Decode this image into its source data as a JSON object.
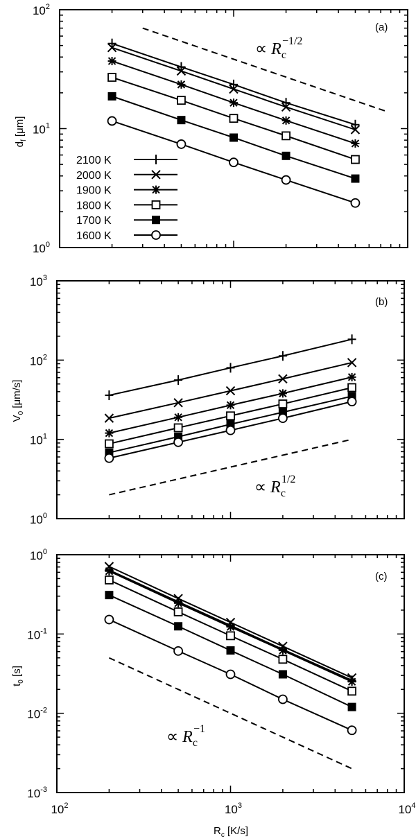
{
  "chart_data": [
    {
      "panel": "(a)",
      "type": "line",
      "scale": {
        "x": "log",
        "y": "log"
      },
      "title": "",
      "xlabel": "",
      "ylabel": "d_f [μm]",
      "xlim": [
        100,
        10000
      ],
      "ylim": [
        1,
        100
      ],
      "x_ticks": [
        "10^2",
        "10^3",
        "10^4"
      ],
      "y_ticks": [
        "10^0",
        "10^1",
        "10^2"
      ],
      "grid": false,
      "legend_position": "lower-left",
      "x": [
        200,
        500,
        1000,
        2000,
        5000
      ],
      "series": [
        {
          "name": "2100 K",
          "marker": "plus",
          "values": [
            52,
            33,
            23.5,
            16.5,
            10.8
          ]
        },
        {
          "name": "2000 K",
          "marker": "cross",
          "values": [
            48,
            30.5,
            21.5,
            15.2,
            9.8
          ]
        },
        {
          "name": "1900 K",
          "marker": "asterisk",
          "values": [
            37,
            23.5,
            16.5,
            11.7,
            7.5
          ]
        },
        {
          "name": "1800 K",
          "marker": "open-square",
          "values": [
            27,
            17.3,
            12.2,
            8.7,
            5.5
          ]
        },
        {
          "name": "1700 K",
          "marker": "filled-square",
          "values": [
            18.7,
            11.8,
            8.4,
            5.9,
            3.8
          ]
        },
        {
          "name": "1600 K",
          "marker": "open-circle",
          "values": [
            11.6,
            7.4,
            5.2,
            3.7,
            2.37
          ]
        }
      ],
      "guide_line": {
        "style": "dashed",
        "x": [
          300,
          7500
        ],
        "y": [
          70,
          14
        ],
        "label": "∝ R_c^{-1/2}"
      },
      "annotations": [
        "(a)",
        "∝ R_c^{-1/2}"
      ]
    },
    {
      "panel": "(b)",
      "type": "line",
      "scale": {
        "x": "log",
        "y": "log"
      },
      "title": "",
      "xlabel": "",
      "ylabel": "V_0 [μm/s]",
      "xlim": [
        100,
        10000
      ],
      "ylim": [
        1,
        1000
      ],
      "x_ticks": [
        "10^2",
        "10^3",
        "10^4"
      ],
      "y_ticks": [
        "10^0",
        "10^1",
        "10^2",
        "10^3"
      ],
      "grid": false,
      "x": [
        200,
        500,
        1000,
        2000,
        5000
      ],
      "series": [
        {
          "name": "2100 K",
          "marker": "plus",
          "values": [
            36,
            56,
            80,
            113,
            183
          ]
        },
        {
          "name": "2000 K",
          "marker": "cross",
          "values": [
            18.5,
            29,
            41,
            58,
            93
          ]
        },
        {
          "name": "1900 K",
          "marker": "asterisk",
          "values": [
            12,
            19,
            27,
            38,
            61
          ]
        },
        {
          "name": "1800 K",
          "marker": "open-square",
          "values": [
            8.8,
            14,
            19.8,
            28,
            45
          ]
        },
        {
          "name": "1700 K",
          "marker": "filled-square",
          "values": [
            6.8,
            10.8,
            15.5,
            22,
            35
          ]
        },
        {
          "name": "1600 K",
          "marker": "open-circle",
          "values": [
            5.8,
            9.2,
            13,
            18.5,
            30
          ]
        }
      ],
      "guide_line": {
        "style": "dashed",
        "x": [
          200,
          5000
        ],
        "y": [
          2,
          10
        ],
        "label": "∝ R_c^{1/2}"
      },
      "annotations": [
        "(b)",
        "∝ R_c^{1/2}"
      ]
    },
    {
      "panel": "(c)",
      "type": "line",
      "scale": {
        "x": "log",
        "y": "log"
      },
      "title": "",
      "xlabel": "R_c [K/s]",
      "ylabel": "t_0 [s]",
      "xlim": [
        100,
        10000
      ],
      "ylim": [
        0.001,
        1
      ],
      "x_ticks": [
        "10^2",
        "10^3",
        "10^4"
      ],
      "y_ticks": [
        "10^-3",
        "10^-2",
        "10^-1",
        "10^0"
      ],
      "grid": false,
      "x": [
        200,
        500,
        1000,
        2000,
        5000
      ],
      "series": [
        {
          "name": "2100 K",
          "marker": "plus",
          "values": [
            0.64,
            0.255,
            0.128,
            0.064,
            0.026
          ]
        },
        {
          "name": "2000 K",
          "marker": "cross",
          "values": [
            0.71,
            0.28,
            0.14,
            0.07,
            0.028
          ]
        },
        {
          "name": "1900 K",
          "marker": "asterisk",
          "values": [
            0.62,
            0.245,
            0.123,
            0.062,
            0.025
          ]
        },
        {
          "name": "1800 K",
          "marker": "open-square",
          "values": [
            0.48,
            0.19,
            0.095,
            0.048,
            0.019
          ]
        },
        {
          "name": "1700 K",
          "marker": "filled-square",
          "values": [
            0.31,
            0.125,
            0.062,
            0.031,
            0.012
          ]
        },
        {
          "name": "1600 K",
          "marker": "open-circle",
          "values": [
            0.152,
            0.061,
            0.031,
            0.015,
            0.0061
          ]
        }
      ],
      "guide_line": {
        "style": "dashed",
        "x": [
          200,
          5000
        ],
        "y": [
          0.05,
          0.002
        ],
        "label": "∝ R_c^{-1}"
      },
      "annotations": [
        "(c)",
        "∝ R_c^{-1}"
      ]
    }
  ],
  "labels": {
    "panel_a": "(a)",
    "panel_b": "(b)",
    "panel_c": "(c)",
    "ylabel_a_main": "d",
    "ylabel_a_sub": "f",
    "ylabel_a_unit": " [μm]",
    "ylabel_b_main": "V",
    "ylabel_b_sub": "0",
    "ylabel_b_unit": " [μm/s]",
    "ylabel_c_main": "t",
    "ylabel_c_sub": "0",
    "ylabel_c_unit": " [s]",
    "xlabel_main": "R",
    "xlabel_sub": "c",
    "xlabel_unit": " [K/s]",
    "annot_prop": "∝",
    "annot_R": "R",
    "annot_c": "c",
    "annot_a_exp": "−1/2",
    "annot_b_exp": "1/2",
    "annot_c_exp": "−1"
  },
  "legend": [
    {
      "label": "2100 K",
      "marker": "plus"
    },
    {
      "label": "2000 K",
      "marker": "cross"
    },
    {
      "label": "1900 K",
      "marker": "asterisk"
    },
    {
      "label": "1800 K",
      "marker": "open-square"
    },
    {
      "label": "1700 K",
      "marker": "filled-square"
    },
    {
      "label": "1600 K",
      "marker": "open-circle"
    }
  ],
  "colors": {
    "ink": "#000000",
    "background": "#ffffff"
  }
}
